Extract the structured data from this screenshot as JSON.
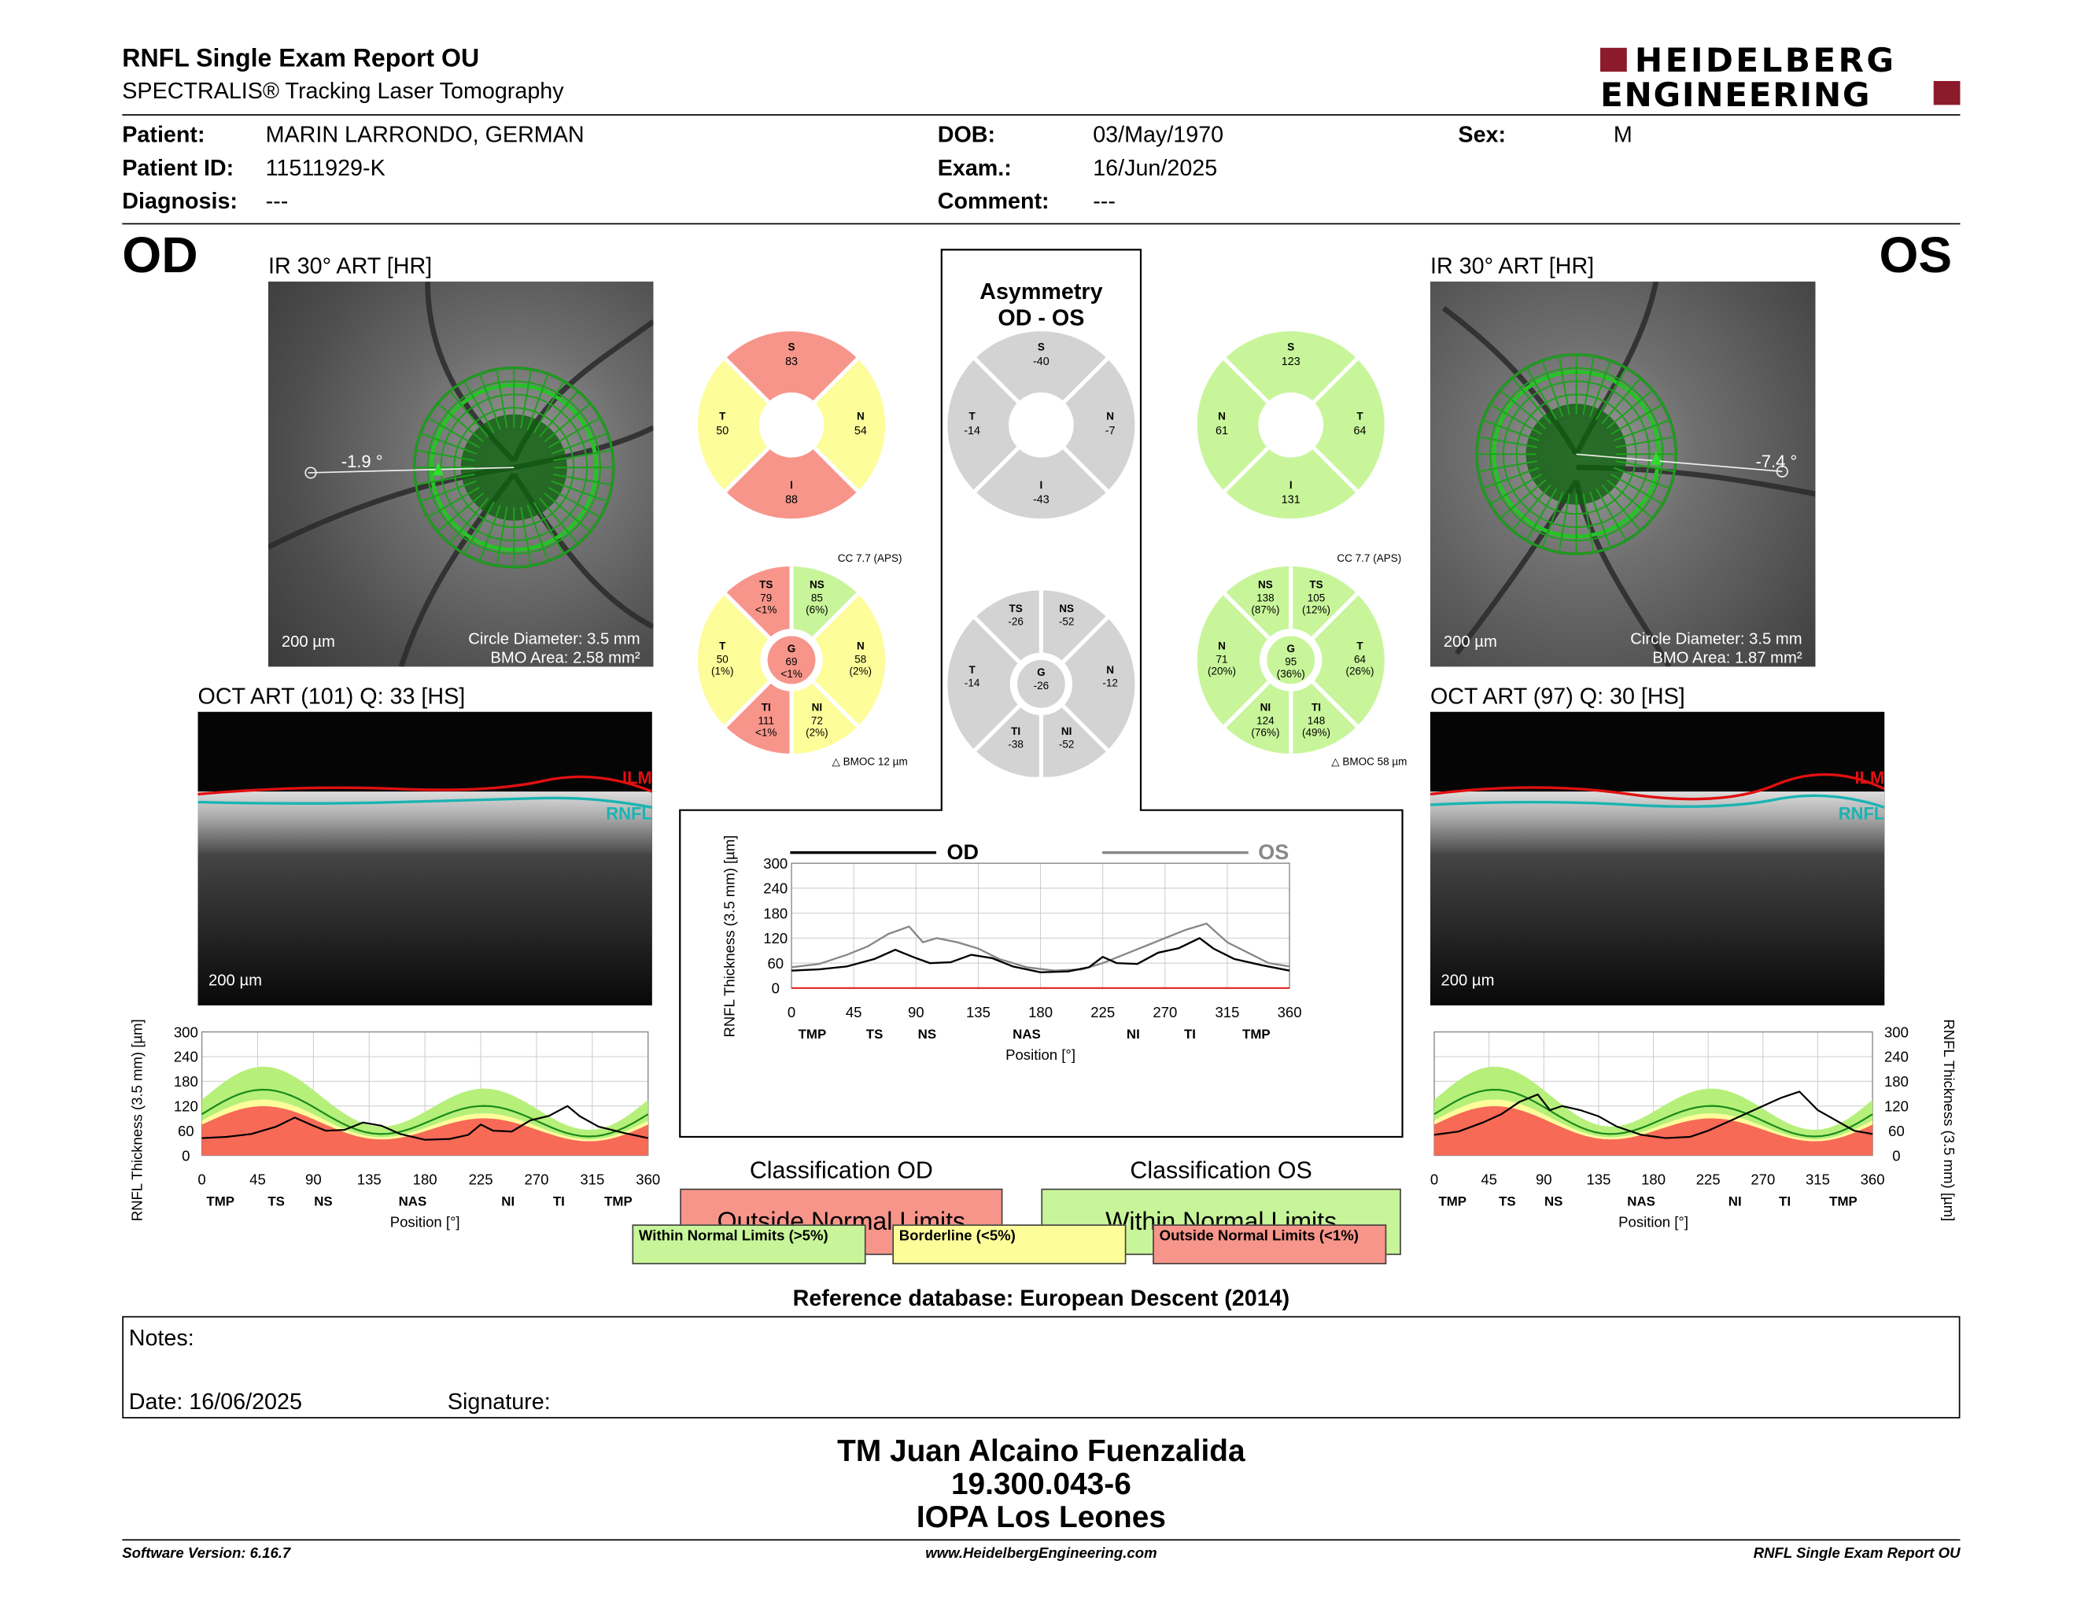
{
  "header": {
    "title": "RNFL Single Exam Report OU",
    "subtitle": "SPECTRALIS® Tracking Laser Tomography",
    "logo_line1": "HEIDELBERG",
    "logo_line2": "ENGINEERING"
  },
  "patient": {
    "patient_label": "Patient:",
    "patient": "MARIN LARRONDO, GERMAN",
    "id_label": "Patient ID:",
    "id": "11511929-K",
    "diagnosis_label": "Diagnosis:",
    "diagnosis": "---",
    "dob_label": "DOB:",
    "dob": "03/May/1970",
    "exam_label": "Exam.:",
    "exam": "16/Jun/2025",
    "comment_label": "Comment:",
    "comment": "---",
    "sex_label": "Sex:",
    "sex": "M"
  },
  "od": {
    "eye": "OD",
    "ir_title": "IR 30° ART [HR]",
    "angle": "-1.9 °",
    "scale": "200 µm",
    "circle": "Circle Diameter: 3.5 mm",
    "bmo": "BMO Area: 2.58 mm²",
    "oct_title": "OCT ART (101) Q: 33 [HS]",
    "oct_scale": "200 µm",
    "ilm": "ILM",
    "rnfl": "RNFL",
    "sectors4": {
      "S": "83",
      "T": "50",
      "N": "54",
      "I": "88"
    },
    "cc": "CC 7.7 (APS)",
    "bmoc": "BMOC 12 µm",
    "sectors6": {
      "TS": [
        "79",
        "<1%"
      ],
      "NS": [
        "85",
        "(6%)"
      ],
      "T": [
        "50",
        "(1%)"
      ],
      "G": [
        "69",
        "<1%"
      ],
      "N": [
        "58",
        "(2%)"
      ],
      "TI": [
        "111",
        "<1%"
      ],
      "NI": [
        "72",
        "(2%)"
      ]
    },
    "classification_title": "Classification OD",
    "classification": "Outside Normal Limits"
  },
  "os": {
    "eye": "OS",
    "ir_title": "IR 30° ART [HR]",
    "angle": "-7.4 °",
    "scale": "200 µm",
    "circle": "Circle Diameter: 3.5 mm",
    "bmo": "BMO Area: 1.87 mm²",
    "oct_title": "OCT ART (97) Q: 30 [HS]",
    "oct_scale": "200 µm",
    "ilm": "ILM",
    "rnfl": "RNFL",
    "sectors4": {
      "S": "123",
      "N": "61",
      "T": "64",
      "I": "131"
    },
    "cc": "CC 7.7 (APS)",
    "bmoc": "BMOC 58 µm",
    "sectors6": {
      "NS": [
        "138",
        "(87%)"
      ],
      "TS": [
        "105",
        "(12%)"
      ],
      "N": [
        "71",
        "(20%)"
      ],
      "G": [
        "95",
        "(36%)"
      ],
      "T": [
        "64",
        "(26%)"
      ],
      "NI": [
        "124",
        "(76%)"
      ],
      "TI": [
        "148",
        "(49%)"
      ]
    },
    "classification_title": "Classification OS",
    "classification": "Within Normal Limits"
  },
  "asym": {
    "title1": "Asymmetry",
    "title2": "OD - OS",
    "sectors4": {
      "S": "-40",
      "N": "-7",
      "T": "-14",
      "I": "-43"
    },
    "sectors6": {
      "NS": "-52",
      "TS": "-26",
      "N": "-12",
      "G": "-26",
      "T": "-14",
      "NI": "-52",
      "TI": "-38"
    }
  },
  "legend": {
    "wnl": "Within Normal Limits (>5%)",
    "bl": "Borderline (<5%)",
    "onl": "Outside Normal Limits (<1%)"
  },
  "reference": "Reference database: European Descent (2014)",
  "notes": {
    "notes_label": "Notes:",
    "date": "Date: 16/06/2025",
    "signature": "Signature:"
  },
  "footer": {
    "name": "TM Juan Alcaino Fuenzalida",
    "rut": "19.300.043-6",
    "clinic": "IOPA Los Leones",
    "software": "Software Version: 6.16.7",
    "url": "www.HeidelbergEngineering.com",
    "report": "RNFL Single Exam Report OU"
  },
  "colors": {
    "green": "#c8f59a",
    "yellow": "#fdfd9a",
    "red": "#f7958a",
    "gray": "#d3d3d3",
    "red_curve": "#f76a56",
    "od_line": "#000000",
    "os_line": "#888888"
  },
  "chart_data": [
    {
      "type": "line",
      "name": "OD RNFL thickness",
      "ylabel": "RNFL Thickness (3.5 mm) [µm]",
      "xlabel": "Position [°]",
      "xticks": [
        0,
        45,
        90,
        135,
        180,
        225,
        270,
        315,
        360
      ],
      "yticks": [
        0,
        60,
        120,
        180,
        240,
        300
      ],
      "ylim": [
        0,
        300
      ],
      "xlim": [
        0,
        360
      ],
      "sector_labels": [
        "TMP",
        "TS",
        "NS",
        "NAS",
        "NI",
        "TI",
        "TMP"
      ],
      "sector_pos": [
        15,
        60,
        98,
        170,
        247,
        288,
        336
      ],
      "x": [
        0,
        20,
        40,
        60,
        75,
        90,
        100,
        115,
        130,
        145,
        160,
        180,
        200,
        215,
        225,
        235,
        250,
        265,
        280,
        295,
        305,
        320,
        340,
        360
      ],
      "y": [
        42,
        45,
        52,
        70,
        92,
        72,
        60,
        62,
        80,
        72,
        52,
        38,
        40,
        50,
        75,
        60,
        58,
        85,
        96,
        120,
        95,
        70,
        55,
        42
      ]
    },
    {
      "type": "line",
      "name": "OS RNFL thickness",
      "ylabel": "RNFL Thickness (3.5 mm) [µm]",
      "xlabel": "Position [°]",
      "xticks": [
        0,
        45,
        90,
        135,
        180,
        225,
        270,
        315,
        360
      ],
      "yticks": [
        0,
        60,
        120,
        180,
        240,
        300
      ],
      "ylim": [
        0,
        300
      ],
      "xlim": [
        0,
        360
      ],
      "sector_labels": [
        "TMP",
        "TS",
        "NS",
        "NAS",
        "NI",
        "TI",
        "TMP"
      ],
      "sector_pos": [
        15,
        60,
        98,
        170,
        247,
        288,
        336
      ],
      "x": [
        0,
        20,
        40,
        55,
        70,
        85,
        95,
        105,
        120,
        135,
        150,
        170,
        190,
        210,
        225,
        240,
        255,
        270,
        285,
        300,
        315,
        330,
        345,
        360
      ],
      "y": [
        50,
        58,
        80,
        100,
        130,
        148,
        110,
        120,
        110,
        95,
        70,
        50,
        42,
        45,
        60,
        80,
        100,
        120,
        140,
        155,
        110,
        85,
        60,
        52
      ]
    },
    {
      "type": "line",
      "name": "OD vs OS",
      "series": [
        {
          "name": "OD"
        },
        {
          "name": "OS"
        }
      ],
      "ylabel": "RNFL Thickness (3.5 mm) [µm]",
      "xlabel": "Position [°]",
      "xticks": [
        0,
        45,
        90,
        135,
        180,
        225,
        270,
        315,
        360
      ],
      "yticks": [
        0,
        60,
        120,
        180,
        240,
        300
      ],
      "ylim": [
        0,
        300
      ],
      "xlim": [
        0,
        360
      ],
      "sector_labels": [
        "TMP",
        "TS",
        "NS",
        "NAS",
        "NI",
        "TI",
        "TMP"
      ],
      "sector_pos": [
        15,
        60,
        98,
        170,
        247,
        288,
        336
      ]
    }
  ]
}
